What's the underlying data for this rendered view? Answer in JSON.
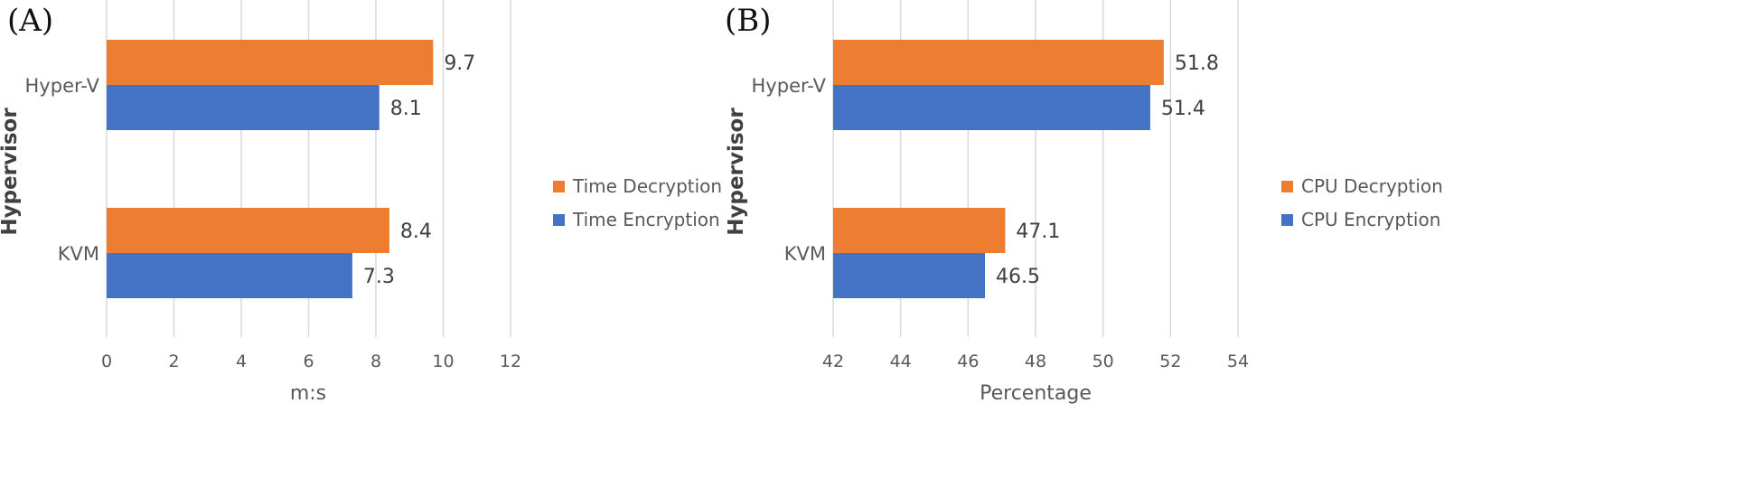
{
  "chart_data": [
    {
      "type": "bar",
      "orientation": "horizontal",
      "panel": "(A)",
      "categories": [
        "Hyper-V",
        "KVM"
      ],
      "series": [
        {
          "name": "Time Decryption",
          "values": [
            9.7,
            8.4
          ],
          "color": "#ED7D31"
        },
        {
          "name": "Time Encryption",
          "values": [
            8.1,
            7.3
          ],
          "color": "#4472C4"
        }
      ],
      "xlabel": "m:s",
      "ylabel": "Hypervisor",
      "xlim": [
        0,
        12
      ],
      "xticks": [
        0,
        2,
        4,
        6,
        8,
        10,
        12
      ],
      "value_labels": [
        [
          "9.7",
          "8.1"
        ],
        [
          "8.4",
          "7.3"
        ]
      ],
      "grid": true,
      "legend": "right"
    },
    {
      "type": "bar",
      "orientation": "horizontal",
      "panel": "(B)",
      "categories": [
        "Hyper-V",
        "KVM"
      ],
      "series": [
        {
          "name": "CPU Decryption",
          "values": [
            51.8,
            47.1
          ],
          "color": "#ED7D31"
        },
        {
          "name": "CPU Encryption",
          "values": [
            51.4,
            46.5
          ],
          "color": "#4472C4"
        }
      ],
      "xlabel": "Percentage",
      "ylabel": "Hypervisor",
      "xlim": [
        42,
        54
      ],
      "xticks": [
        42,
        44,
        46,
        48,
        50,
        52,
        54
      ],
      "value_labels": [
        [
          "51.8",
          "51.4"
        ],
        [
          "47.1",
          "46.5"
        ]
      ],
      "grid": true,
      "legend": "right"
    }
  ]
}
